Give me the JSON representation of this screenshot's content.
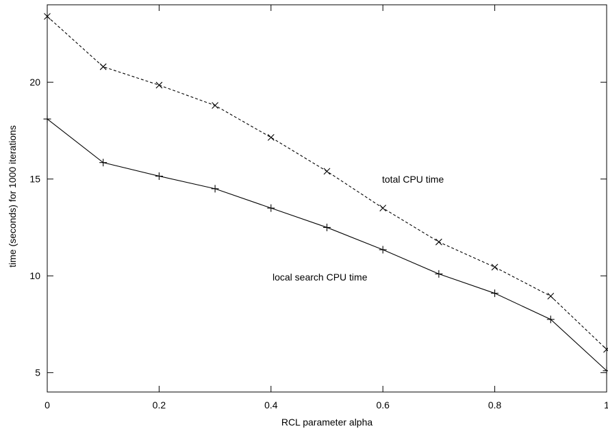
{
  "chart_data": {
    "type": "line",
    "title": "",
    "xlabel": "RCL parameter alpha",
    "ylabel": "time (seconds) for 1000 iterations",
    "xlim": [
      0,
      1
    ],
    "ylim": [
      4,
      24
    ],
    "x_ticks": [
      0,
      0.2,
      0.4,
      0.6,
      0.8,
      1
    ],
    "x_tick_labels": [
      "0",
      "0.2",
      "0.4",
      "0.6",
      "0.8",
      "1"
    ],
    "y_ticks": [
      5,
      10,
      15,
      20
    ],
    "y_tick_labels": [
      "5",
      "10",
      "15",
      "20"
    ],
    "grid": false,
    "x": [
      0,
      0.1,
      0.2,
      0.3,
      0.4,
      0.5,
      0.6,
      0.7,
      0.8,
      0.9,
      1.0
    ],
    "series": [
      {
        "name": "total CPU time",
        "style": "dashed",
        "marker": "x",
        "values": [
          23.4,
          20.8,
          19.85,
          18.8,
          17.15,
          15.4,
          13.5,
          11.75,
          10.45,
          8.95,
          6.2
        ]
      },
      {
        "name": "local search CPU time",
        "style": "solid",
        "marker": "+",
        "values": [
          18.1,
          15.85,
          15.15,
          14.5,
          13.5,
          12.5,
          11.35,
          10.1,
          9.1,
          7.75,
          5.1
        ]
      }
    ],
    "annotations": [
      {
        "text": "total CPU time",
        "series": 0
      },
      {
        "text": "local search CPU time",
        "series": 1
      }
    ],
    "colors": {
      "line": "#000000",
      "axis": "#000000",
      "background": "#ffffff"
    }
  }
}
